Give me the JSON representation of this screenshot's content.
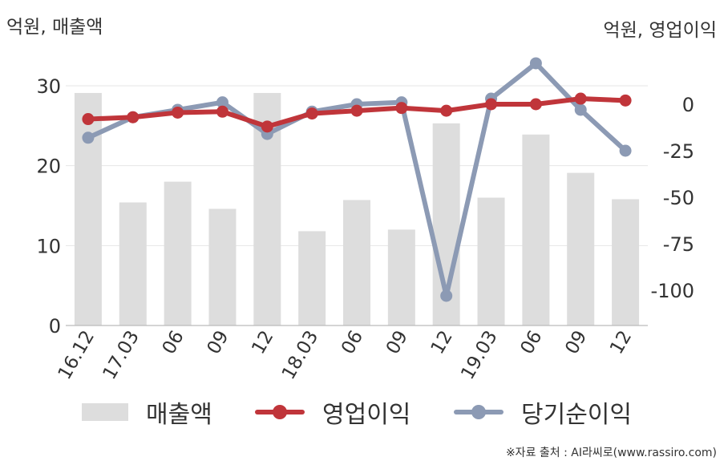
{
  "header": {
    "left_unit": "억원, 매출액",
    "right_unit": "억원, 영업이익"
  },
  "chart_data": {
    "type": "bar",
    "categories": [
      "16.12",
      "17.03",
      "06",
      "09",
      "12",
      "18.03",
      "06",
      "09",
      "12",
      "19.03",
      "06",
      "09",
      "12"
    ],
    "series": [
      {
        "name": "매출액",
        "type": "bar",
        "axis": "left",
        "color": "#dddddd",
        "values": [
          29.1,
          15.4,
          18.0,
          14.6,
          29.1,
          11.8,
          15.7,
          12.0,
          25.3,
          16.0,
          23.9,
          19.1,
          15.8
        ]
      },
      {
        "name": "영업이익",
        "type": "line",
        "axis": "right",
        "color": "#c0353a",
        "values": [
          -8,
          -7,
          -4.5,
          -4,
          -12,
          -5,
          -3.5,
          -2,
          -3.5,
          0,
          0,
          3,
          2
        ]
      },
      {
        "name": "당기순이익",
        "type": "line",
        "axis": "right",
        "color": "#8c9ab4",
        "values": [
          -18,
          -7,
          -3,
          1,
          -16,
          -4,
          0,
          1,
          -103,
          3,
          22,
          -3,
          -25
        ]
      }
    ],
    "left_axis": {
      "ylim": [
        0,
        30
      ],
      "ticks": [
        0,
        10,
        20,
        30
      ]
    },
    "right_axis": {
      "ylim": [
        -118,
        10
      ],
      "ticks": [
        0,
        -25,
        -50,
        -75,
        -100
      ]
    },
    "grid": true,
    "legend_position": "bottom"
  },
  "legend": {
    "items": [
      "매출액",
      "영업이익",
      "당기순이익"
    ]
  },
  "source": "※자료 출처 : AI라씨로(www.rassiro.com)"
}
